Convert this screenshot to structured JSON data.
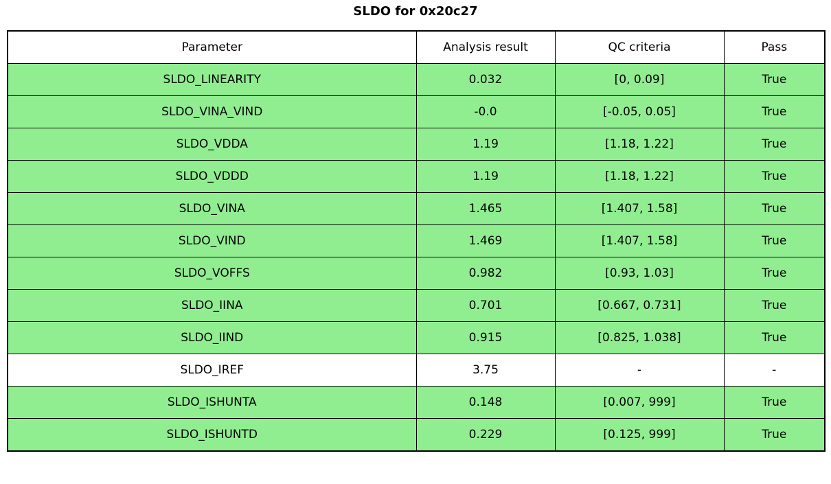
{
  "title": "SLDO for 0x20c27",
  "colors": {
    "row_green": "#90EE90",
    "row_white": "#FFFFFF",
    "border": "#000000",
    "text": "#000000"
  },
  "chart_data": {
    "type": "table",
    "title": "SLDO for 0x20c27",
    "columns": [
      "Parameter",
      "Analysis result",
      "QC criteria",
      "Pass"
    ],
    "rows": [
      {
        "cells": [
          "SLDO_LINEARITY",
          "0.032",
          "[0, 0.09]",
          "True"
        ],
        "bg": "green"
      },
      {
        "cells": [
          "SLDO_VINA_VIND",
          "-0.0",
          "[-0.05, 0.05]",
          "True"
        ],
        "bg": "green"
      },
      {
        "cells": [
          "SLDO_VDDA",
          "1.19",
          "[1.18, 1.22]",
          "True"
        ],
        "bg": "green"
      },
      {
        "cells": [
          "SLDO_VDDD",
          "1.19",
          "[1.18, 1.22]",
          "True"
        ],
        "bg": "green"
      },
      {
        "cells": [
          "SLDO_VINA",
          "1.465",
          "[1.407, 1.58]",
          "True"
        ],
        "bg": "green"
      },
      {
        "cells": [
          "SLDO_VIND",
          "1.469",
          "[1.407, 1.58]",
          "True"
        ],
        "bg": "green"
      },
      {
        "cells": [
          "SLDO_VOFFS",
          "0.982",
          "[0.93, 1.03]",
          "True"
        ],
        "bg": "green"
      },
      {
        "cells": [
          "SLDO_IINA",
          "0.701",
          "[0.667, 0.731]",
          "True"
        ],
        "bg": "green"
      },
      {
        "cells": [
          "SLDO_IIND",
          "0.915",
          "[0.825, 1.038]",
          "True"
        ],
        "bg": "green"
      },
      {
        "cells": [
          "SLDO_IREF",
          "3.75",
          "-",
          "-"
        ],
        "bg": "white"
      },
      {
        "cells": [
          "SLDO_ISHUNTA",
          "0.148",
          "[0.007, 999]",
          "True"
        ],
        "bg": "green"
      },
      {
        "cells": [
          "SLDO_ISHUNTD",
          "0.229",
          "[0.125, 999]",
          "True"
        ],
        "bg": "green"
      }
    ]
  }
}
